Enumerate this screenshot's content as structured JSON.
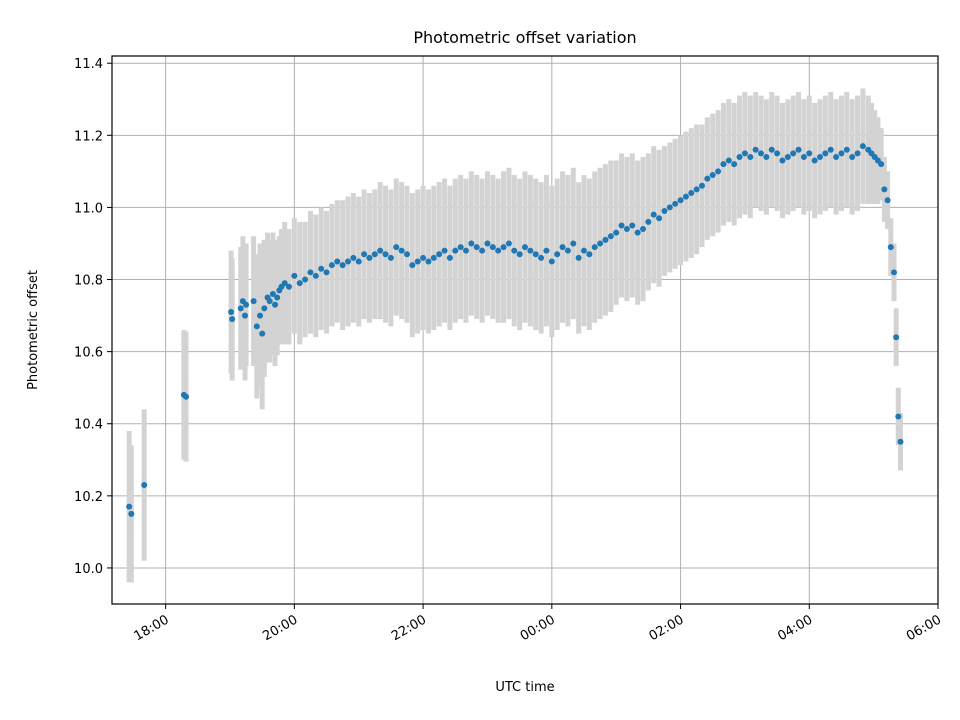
{
  "chart_data": {
    "type": "scatter",
    "title": "Photometric offset variation",
    "xlabel": "UTC time",
    "ylabel": "Photometric offset",
    "xlim": [
      "17:10",
      "06:00"
    ],
    "ylim": [
      9.9,
      11.42
    ],
    "x_ticks": [
      "18:00",
      "20:00",
      "22:00",
      "00:00",
      "02:00",
      "04:00",
      "06:00"
    ],
    "y_ticks": [
      "10.0",
      "10.2",
      "10.4",
      "10.6",
      "10.8",
      "11.0",
      "11.2",
      "11.4"
    ],
    "grid": true,
    "colors": {
      "points": "#1f77b4",
      "errorbars": "#d3d3d3"
    },
    "series": [
      {
        "x": [
          "17:26",
          "17:28",
          "17:40",
          "18:17",
          "18:19",
          "19:01",
          "19:02",
          "19:10",
          "19:12",
          "19:14",
          "19:15",
          "19:22",
          "19:25",
          "19:28",
          "19:30",
          "19:32",
          "19:35",
          "19:37",
          "19:40",
          "19:42",
          "19:44",
          "19:46",
          "19:48",
          "19:51",
          "19:55",
          "20:00",
          "20:05",
          "20:10",
          "20:15",
          "20:20",
          "20:25",
          "20:30",
          "20:35",
          "20:40",
          "20:45",
          "20:50",
          "20:55",
          "21:00",
          "21:05",
          "21:10",
          "21:15",
          "21:20",
          "21:25",
          "21:30",
          "21:35",
          "21:40",
          "21:45",
          "21:50",
          "21:55",
          "22:00",
          "22:05",
          "22:10",
          "22:15",
          "22:20",
          "22:25",
          "22:30",
          "22:35",
          "22:40",
          "22:45",
          "22:50",
          "22:55",
          "23:00",
          "23:05",
          "23:10",
          "23:15",
          "23:20",
          "23:25",
          "23:30",
          "23:35",
          "23:40",
          "23:45",
          "23:50",
          "23:55",
          "00:00",
          "00:05",
          "00:10",
          "00:15",
          "00:20",
          "00:25",
          "00:30",
          "00:35",
          "00:40",
          "00:45",
          "00:50",
          "00:55",
          "01:00",
          "01:05",
          "01:10",
          "01:15",
          "01:20",
          "01:25",
          "01:30",
          "01:35",
          "01:40",
          "01:45",
          "01:50",
          "01:55",
          "02:00",
          "02:05",
          "02:10",
          "02:15",
          "02:20",
          "02:25",
          "02:30",
          "02:35",
          "02:40",
          "02:45",
          "02:50",
          "02:55",
          "03:00",
          "03:05",
          "03:10",
          "03:15",
          "03:20",
          "03:25",
          "03:30",
          "03:35",
          "03:40",
          "03:45",
          "03:50",
          "03:55",
          "04:00",
          "04:05",
          "04:10",
          "04:15",
          "04:20",
          "04:25",
          "04:30",
          "04:35",
          "04:40",
          "04:45",
          "04:50",
          "04:55",
          "04:58",
          "05:01",
          "05:04",
          "05:07",
          "05:10",
          "05:13",
          "05:16",
          "05:19",
          "05:21",
          "05:23",
          "05:25"
        ],
        "y": [
          10.17,
          10.15,
          10.23,
          10.48,
          10.475,
          10.71,
          10.69,
          10.72,
          10.74,
          10.7,
          10.73,
          10.74,
          10.67,
          10.7,
          10.65,
          10.72,
          10.75,
          10.74,
          10.76,
          10.73,
          10.75,
          10.77,
          10.78,
          10.79,
          10.78,
          10.81,
          10.79,
          10.8,
          10.82,
          10.81,
          10.83,
          10.82,
          10.84,
          10.85,
          10.84,
          10.85,
          10.86,
          10.85,
          10.87,
          10.86,
          10.87,
          10.88,
          10.87,
          10.86,
          10.89,
          10.88,
          10.87,
          10.84,
          10.85,
          10.86,
          10.85,
          10.86,
          10.87,
          10.88,
          10.86,
          10.88,
          10.89,
          10.88,
          10.9,
          10.89,
          10.88,
          10.9,
          10.89,
          10.88,
          10.89,
          10.9,
          10.88,
          10.87,
          10.89,
          10.88,
          10.87,
          10.86,
          10.88,
          10.85,
          10.87,
          10.89,
          10.88,
          10.9,
          10.86,
          10.88,
          10.87,
          10.89,
          10.9,
          10.91,
          10.92,
          10.93,
          10.95,
          10.94,
          10.95,
          10.93,
          10.94,
          10.96,
          10.98,
          10.97,
          10.99,
          11.0,
          11.01,
          11.02,
          11.03,
          11.04,
          11.05,
          11.06,
          11.08,
          11.09,
          11.1,
          11.12,
          11.13,
          11.12,
          11.14,
          11.15,
          11.14,
          11.16,
          11.15,
          11.14,
          11.16,
          11.15,
          11.13,
          11.14,
          11.15,
          11.16,
          11.14,
          11.15,
          11.13,
          11.14,
          11.15,
          11.16,
          11.14,
          11.15,
          11.16,
          11.14,
          11.15,
          11.17,
          11.16,
          11.15,
          11.14,
          11.13,
          11.12,
          11.05,
          11.02,
          10.89,
          10.82,
          10.64,
          10.42,
          10.35
        ],
        "yerr": [
          0.21,
          0.19,
          0.21,
          0.18,
          0.18,
          0.17,
          0.17,
          0.17,
          0.18,
          0.18,
          0.17,
          0.18,
          0.2,
          0.2,
          0.21,
          0.19,
          0.18,
          0.17,
          0.17,
          0.17,
          0.16,
          0.15,
          0.16,
          0.17,
          0.16,
          0.16,
          0.17,
          0.16,
          0.17,
          0.17,
          0.17,
          0.17,
          0.17,
          0.17,
          0.18,
          0.18,
          0.18,
          0.18,
          0.18,
          0.18,
          0.18,
          0.19,
          0.19,
          0.19,
          0.19,
          0.19,
          0.19,
          0.2,
          0.2,
          0.2,
          0.2,
          0.2,
          0.2,
          0.2,
          0.2,
          0.2,
          0.2,
          0.2,
          0.2,
          0.2,
          0.2,
          0.2,
          0.2,
          0.2,
          0.21,
          0.21,
          0.21,
          0.21,
          0.21,
          0.21,
          0.21,
          0.21,
          0.21,
          0.21,
          0.21,
          0.21,
          0.21,
          0.21,
          0.21,
          0.21,
          0.21,
          0.21,
          0.21,
          0.21,
          0.21,
          0.2,
          0.2,
          0.2,
          0.2,
          0.2,
          0.2,
          0.19,
          0.19,
          0.19,
          0.18,
          0.18,
          0.18,
          0.18,
          0.18,
          0.18,
          0.18,
          0.17,
          0.17,
          0.17,
          0.17,
          0.17,
          0.17,
          0.17,
          0.17,
          0.17,
          0.17,
          0.16,
          0.16,
          0.16,
          0.16,
          0.16,
          0.16,
          0.16,
          0.16,
          0.16,
          0.16,
          0.16,
          0.16,
          0.16,
          0.16,
          0.16,
          0.16,
          0.16,
          0.16,
          0.16,
          0.16,
          0.16,
          0.15,
          0.14,
          0.13,
          0.12,
          0.1,
          0.09,
          0.08,
          0.08,
          0.08,
          0.08,
          0.08,
          0.08
        ]
      }
    ]
  }
}
